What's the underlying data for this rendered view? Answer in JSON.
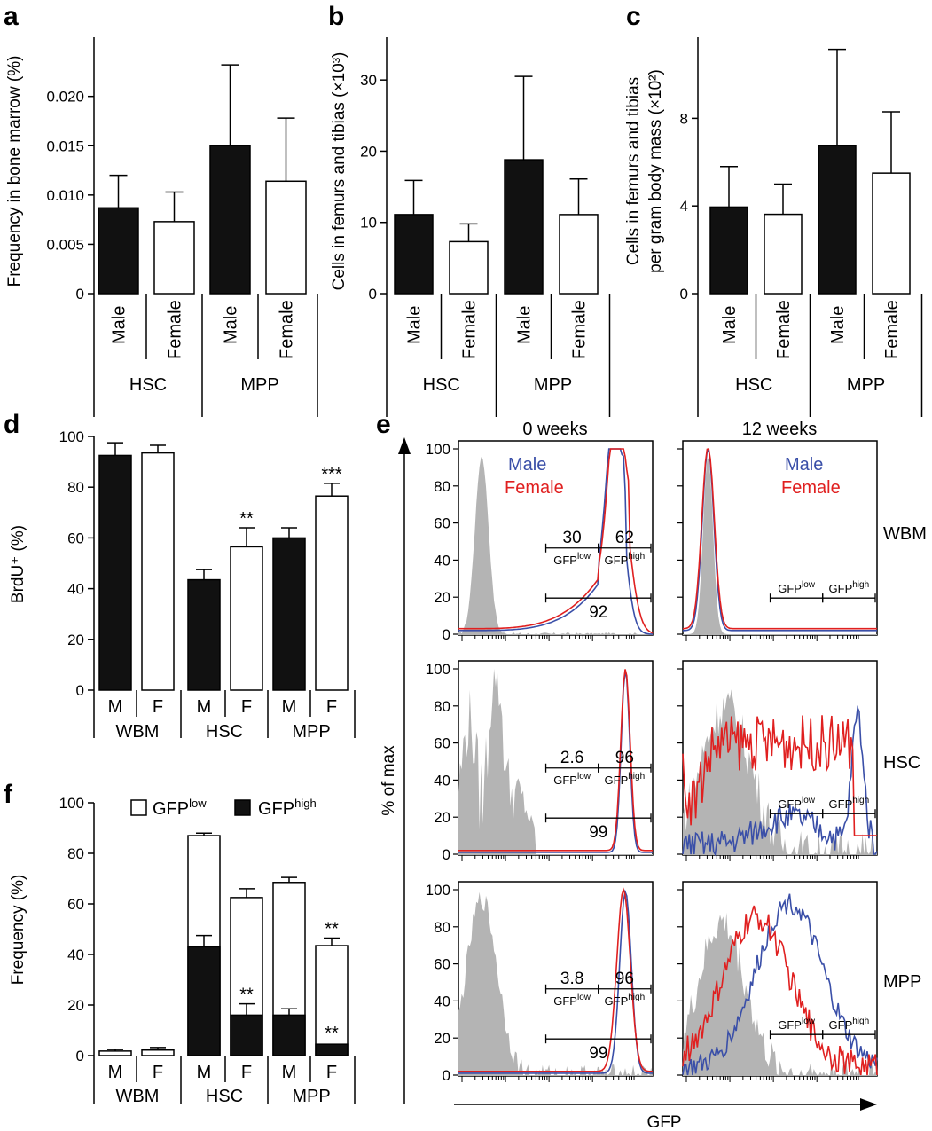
{
  "colors": {
    "male_bar": "#111111",
    "female_bar": "#ffffff",
    "male_line": "#3a4fa8",
    "female_line": "#e02020",
    "fill_gray": "#b4b4b4"
  },
  "panels": [
    {
      "letter": "a",
      "ylabel": "Frequency in bone marrow (%)",
      "ylim": [
        0,
        0.026
      ],
      "ticks": [
        0,
        0.005,
        0.01,
        0.015,
        0.02
      ],
      "tick_labels": [
        "0",
        "0.005",
        "0.010",
        "0.015",
        "0.020"
      ],
      "bars": [
        {
          "label": "Male",
          "value": 0.0087,
          "err": 0.0033,
          "fill": "male"
        },
        {
          "label": "Female",
          "value": 0.0073,
          "err": 0.003,
          "fill": "female"
        },
        {
          "label": "Male",
          "value": 0.015,
          "err": 0.0082,
          "fill": "male"
        },
        {
          "label": "Female",
          "value": 0.0114,
          "err": 0.0064,
          "fill": "female"
        }
      ],
      "groups": [
        "HSC",
        "MPP"
      ]
    },
    {
      "letter": "b",
      "ylabel": "Cells in femurs and tibias (×10³)",
      "ylim": [
        0,
        36
      ],
      "ticks": [
        0,
        10,
        20,
        30
      ],
      "tick_labels": [
        "0",
        "10",
        "20",
        "30"
      ],
      "bars": [
        {
          "label": "Male",
          "value": 11.1,
          "err": 4.8,
          "fill": "male"
        },
        {
          "label": "Female",
          "value": 7.3,
          "err": 2.5,
          "fill": "female"
        },
        {
          "label": "Male",
          "value": 18.8,
          "err": 11.7,
          "fill": "male"
        },
        {
          "label": "Female",
          "value": 11.1,
          "err": 5.0,
          "fill": "female"
        }
      ],
      "groups": [
        "HSC",
        "MPP"
      ]
    },
    {
      "letter": "c",
      "ylabel_lines": [
        "Cells in femurs and tibias",
        "per gram body mass (×10²)"
      ],
      "ylim": [
        0,
        11.7
      ],
      "ticks": [
        0,
        4,
        8
      ],
      "tick_labels": [
        "0",
        "4",
        "8"
      ],
      "bars": [
        {
          "label": "Male",
          "value": 3.95,
          "err": 1.85,
          "fill": "male"
        },
        {
          "label": "Female",
          "value": 3.62,
          "err": 1.38,
          "fill": "female"
        },
        {
          "label": "Male",
          "value": 6.75,
          "err": 4.4,
          "fill": "male"
        },
        {
          "label": "Female",
          "value": 5.5,
          "err": 2.8,
          "fill": "female"
        }
      ],
      "groups": [
        "HSC",
        "MPP"
      ]
    }
  ],
  "chart_data": [
    {
      "type": "bar",
      "panel": "a",
      "categories": [
        "HSC Male",
        "HSC Female",
        "MPP Male",
        "MPP Female"
      ],
      "values": [
        0.0087,
        0.0073,
        0.015,
        0.0114
      ],
      "errors": [
        0.0033,
        0.003,
        0.0082,
        0.0064
      ],
      "ylabel": "Frequency in bone marrow (%)",
      "ylim": [
        0,
        0.026
      ]
    },
    {
      "type": "bar",
      "panel": "b",
      "categories": [
        "HSC Male",
        "HSC Female",
        "MPP Male",
        "MPP Female"
      ],
      "values": [
        11.1,
        7.3,
        18.8,
        11.1
      ],
      "errors": [
        4.8,
        2.5,
        11.7,
        5.0
      ],
      "ylabel": "Cells in femurs and tibias (×10³)",
      "ylim": [
        0,
        36
      ]
    },
    {
      "type": "bar",
      "panel": "c",
      "categories": [
        "HSC Male",
        "HSC Female",
        "MPP Male",
        "MPP Female"
      ],
      "values": [
        3.95,
        3.62,
        6.75,
        5.5
      ],
      "errors": [
        1.85,
        1.38,
        4.4,
        2.8
      ],
      "ylabel": "Cells in femurs and tibias per gram body mass (×10²)",
      "ylim": [
        0,
        11.7
      ]
    },
    {
      "type": "bar",
      "panel": "d",
      "categories": [
        "WBM M",
        "WBM F",
        "HSC M",
        "HSC F",
        "MPP M",
        "MPP F"
      ],
      "values": [
        92.5,
        93.5,
        43.5,
        56.5,
        60,
        76.5
      ],
      "errors": [
        5,
        3,
        4,
        7.5,
        4,
        5
      ],
      "annotations": [
        "",
        "",
        "",
        "**",
        "",
        "***"
      ],
      "ylabel": "BrdU⁺ (%)",
      "ylim": [
        0,
        100
      ]
    },
    {
      "type": "bar",
      "panel": "f",
      "stacked": true,
      "legend": [
        "GFPlow",
        "GFPhigh"
      ],
      "categories": [
        "WBM M",
        "WBM F",
        "HSC M",
        "HSC F",
        "MPP M",
        "MPP F"
      ],
      "total": [
        1.8,
        2.2,
        87,
        62.5,
        68.5,
        43.5
      ],
      "total_err": [
        0.6,
        1,
        1,
        3.5,
        2,
        3
      ],
      "high": [
        0,
        0,
        43,
        16,
        16,
        4.5
      ],
      "high_err": [
        0,
        0,
        4.5,
        4.5,
        2.5,
        0
      ],
      "annotations_total": [
        "",
        "",
        "",
        "",
        "",
        "**"
      ],
      "annotations_high": [
        "",
        "",
        "",
        "**",
        "",
        "**"
      ],
      "ylabel": "Frequency (%)",
      "ylim": [
        0,
        100
      ]
    },
    {
      "type": "line",
      "panel": "e",
      "columns": [
        "0 weeks",
        "12 weeks"
      ],
      "rows": [
        "WBM",
        "HSC",
        "MPP"
      ],
      "series": [
        "Male",
        "Female"
      ],
      "ylabel": "% of max",
      "xlabel": "GFP",
      "ylim": [
        0,
        100
      ],
      "gates": {
        "WBM_0w": {
          "low": "30",
          "high": "62",
          "total": "92"
        },
        "HSC_0w": {
          "low": "2.6",
          "high": "96",
          "total": "99"
        },
        "MPP_0w": {
          "low": "3.8",
          "high": "96",
          "total": "99"
        }
      }
    }
  ],
  "panel_d": {
    "letter": "d",
    "ylabel": "BrdU⁺ (%)",
    "tick_labels": [
      "0",
      "20",
      "40",
      "60",
      "80",
      "100"
    ],
    "bar_labels": [
      "M",
      "F",
      "M",
      "F",
      "M",
      "F"
    ],
    "groups": [
      "WBM",
      "HSC",
      "MPP"
    ],
    "stars": [
      "**",
      "***"
    ]
  },
  "panel_f": {
    "letter": "f",
    "ylabel": "Frequency (%)",
    "tick_labels": [
      "0",
      "20",
      "40",
      "60",
      "80",
      "100"
    ],
    "bar_labels": [
      "M",
      "F",
      "M",
      "F",
      "M",
      "F"
    ],
    "groups": [
      "WBM",
      "HSC",
      "MPP"
    ],
    "legend_low": "GFP",
    "legend_low_sup": "low",
    "legend_high": "GFP",
    "legend_high_sup": "high",
    "stars": [
      "**",
      "**",
      "**"
    ]
  },
  "panel_e": {
    "letter": "e",
    "col_titles": [
      "0 weeks",
      "12 weeks"
    ],
    "row_labels": [
      "WBM",
      "HSC",
      "MPP"
    ],
    "ylabel": "% of max",
    "xlabel": "GFP",
    "tick_labels": [
      "0",
      "20",
      "40",
      "60",
      "80",
      "100"
    ],
    "legend_male": "Male",
    "legend_female": "Female",
    "gfp": "GFP",
    "sup_low": "low",
    "sup_high": "high",
    "nums": {
      "wbm_low": "30",
      "wbm_high": "62",
      "wbm_total": "92",
      "hsc_low": "2.6",
      "hsc_high": "96",
      "hsc_total": "99",
      "mpp_low": "3.8",
      "mpp_high": "96",
      "mpp_total": "99"
    }
  }
}
